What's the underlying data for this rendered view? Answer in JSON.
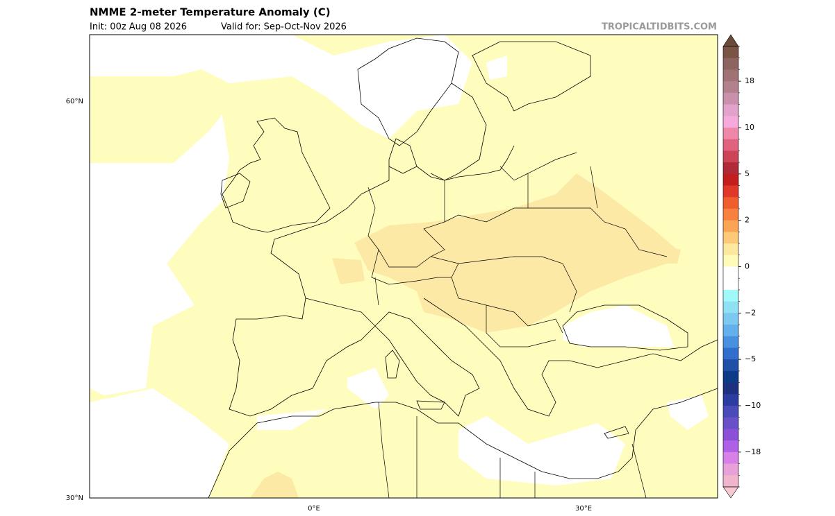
{
  "header": {
    "title": "NMME 2-meter Temperature Anomaly (C)",
    "init": "Init: 00z Aug 08 2026",
    "valid": "Valid for: Sep-Oct-Nov 2026",
    "credit": "TROPICALTIDBITS.COM"
  },
  "map": {
    "lat_labels": [
      "60°N",
      "30°N"
    ],
    "lon_labels": [
      "0°E",
      "30°E"
    ]
  },
  "colorbar": {
    "ticks": [
      18,
      10,
      5,
      2,
      0,
      {
        "value": -2,
        "label": "−2"
      },
      {
        "value": -5,
        "label": "−5"
      },
      {
        "value": -10,
        "label": "−10"
      },
      {
        "value": -18,
        "label": "−18"
      }
    ],
    "top_color": "#6b4a3a",
    "bottom_color": "#f8c8d0",
    "colors": [
      "#7a5545",
      "#8e6460",
      "#a07276",
      "#b3818d",
      "#c890aa",
      "#e3a2cb",
      "#f7a8dc",
      "#ef88a8",
      "#e0627e",
      "#cc4456",
      "#b02a38",
      "#c41e1e",
      "#e0392a",
      "#f05e30",
      "#f88040",
      "#fba454",
      "#fdc878",
      "#fde8a0",
      "#fffbb8",
      "#ffffff",
      "#ffffff",
      "#a0f8f8",
      "#90e0f4",
      "#7cc8f0",
      "#62b0ec",
      "#4890e0",
      "#3070cc",
      "#1e50a8",
      "#0c3c88",
      "#1e3080",
      "#2c3ca0",
      "#4a4ab8",
      "#6a50c8",
      "#8c50d8",
      "#b060e6",
      "#d880e8",
      "#e8a0d8",
      "#f0b4cc"
    ]
  }
}
